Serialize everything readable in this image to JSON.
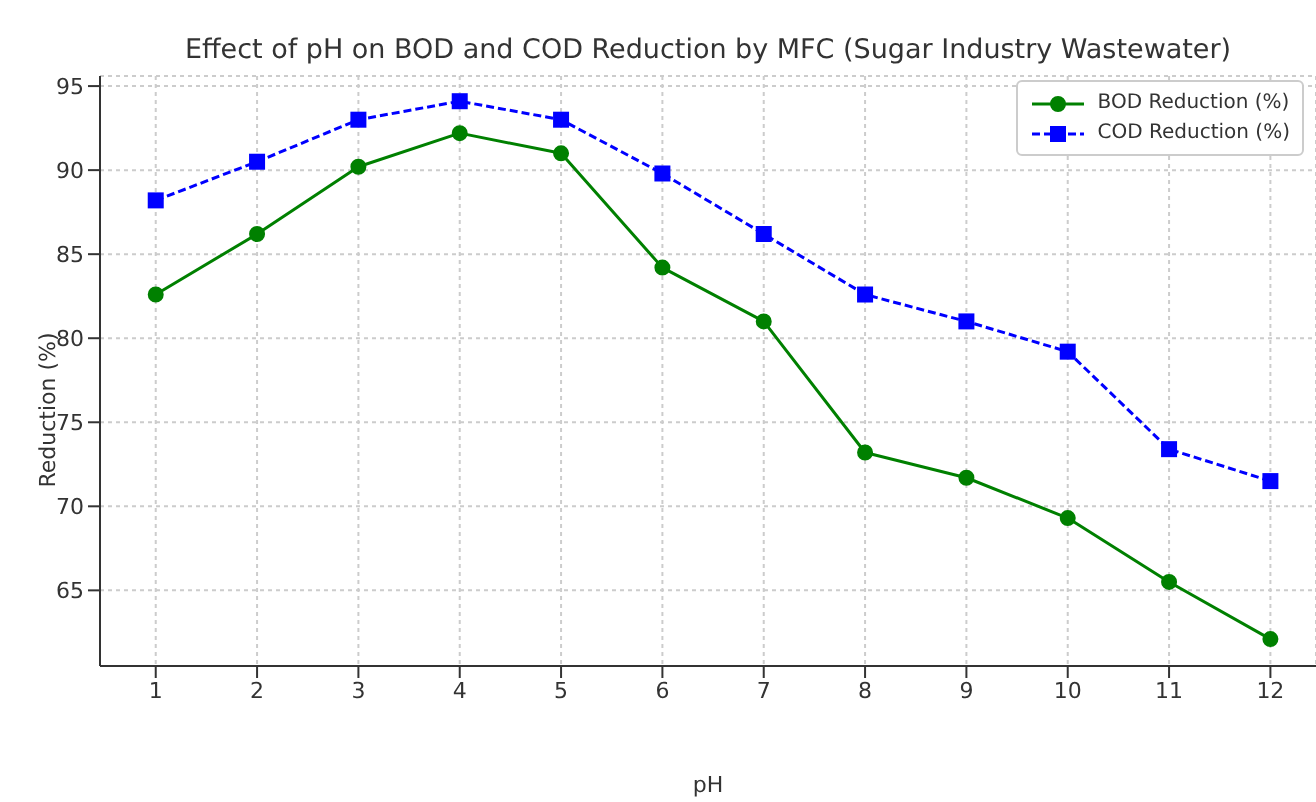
{
  "chart_data": {
    "type": "line",
    "title": "Effect of pH on BOD and COD Reduction by MFC (Sugar Industry Wastewater)",
    "xlabel": "pH",
    "ylabel": "Reduction (%)",
    "x": [
      1,
      2,
      3,
      4,
      5,
      6,
      7,
      8,
      9,
      10,
      11,
      12
    ],
    "series": [
      {
        "name": "BOD Reduction (%)",
        "color": "#008000",
        "marker": "circle",
        "line_style": "solid",
        "values": [
          82.6,
          86.2,
          90.2,
          92.2,
          91.0,
          84.2,
          81.0,
          73.2,
          71.7,
          69.3,
          65.5,
          62.1
        ]
      },
      {
        "name": "COD Reduction (%)",
        "color": "#0000ff",
        "marker": "square",
        "line_style": "dashed",
        "values": [
          88.2,
          90.5,
          93.0,
          94.1,
          93.0,
          89.8,
          86.2,
          82.6,
          81.0,
          79.2,
          73.4,
          71.5
        ]
      }
    ],
    "xlim": [
      0.45,
      12.45
    ],
    "xticks": [
      1,
      2,
      3,
      4,
      5,
      6,
      7,
      8,
      9,
      10,
      11,
      12
    ],
    "ylim": [
      60.5,
      95.6
    ],
    "yticks": [
      65,
      70,
      75,
      80,
      85,
      90,
      95
    ],
    "grid": true,
    "legend": "top right"
  }
}
